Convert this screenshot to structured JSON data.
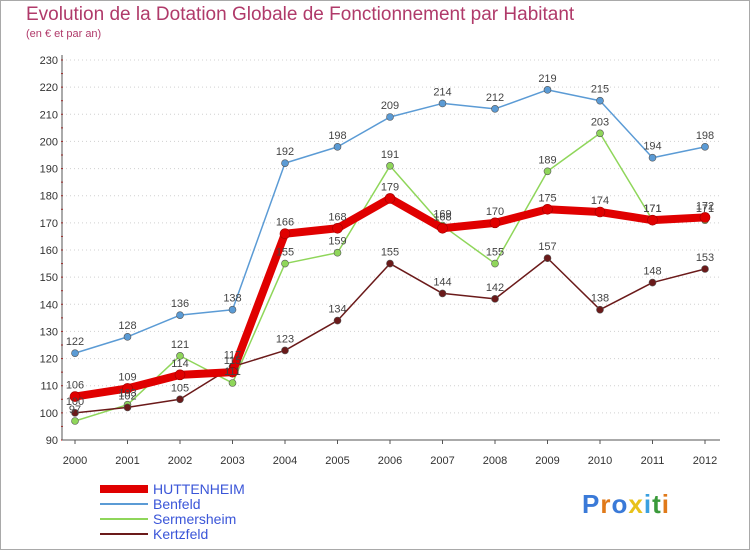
{
  "chart_data": {
    "type": "line",
    "title": "Evolution de la Dotation Globale de Fonctionnement par Habitant",
    "subtitle": "(en € et par an)",
    "x": [
      "2000",
      "2001",
      "2002",
      "2003",
      "2004",
      "2005",
      "2006",
      "2007",
      "2008",
      "2009",
      "2010",
      "2011",
      "2012"
    ],
    "ylim": [
      90,
      230
    ],
    "yticks": [
      90,
      100,
      110,
      120,
      130,
      140,
      150,
      160,
      170,
      180,
      190,
      200,
      210,
      220,
      230
    ],
    "grid": "horizontal dotted",
    "legend": "bottom-left",
    "series": [
      {
        "name": "HUTTENHEIM",
        "color": "#e00000",
        "values": [
          106,
          109,
          114,
          115,
          166,
          168,
          179,
          168,
          170,
          175,
          174,
          171,
          172
        ]
      },
      {
        "name": "Benfeld",
        "color": "#5b9bd5",
        "values": [
          122,
          128,
          136,
          138,
          192,
          198,
          209,
          214,
          212,
          219,
          215,
          194,
          198
        ]
      },
      {
        "name": "Sermersheim",
        "color": "#8fd65a",
        "values": [
          97,
          103,
          121,
          111,
          155,
          159,
          191,
          169,
          155,
          189,
          203,
          171,
          171
        ]
      },
      {
        "name": "Kertzfeld",
        "color": "#6b1a1a",
        "values": [
          100,
          102,
          105,
          117,
          123,
          134,
          155,
          144,
          142,
          157,
          138,
          148,
          153
        ]
      }
    ]
  },
  "logo": {
    "text": "Proxiti",
    "colors": [
      "#3a7ad8",
      "#e07a1a",
      "#3a7ad8",
      "#e8c21a",
      "#3aa0e0",
      "#3a9a3a",
      "#e07a1a"
    ]
  }
}
